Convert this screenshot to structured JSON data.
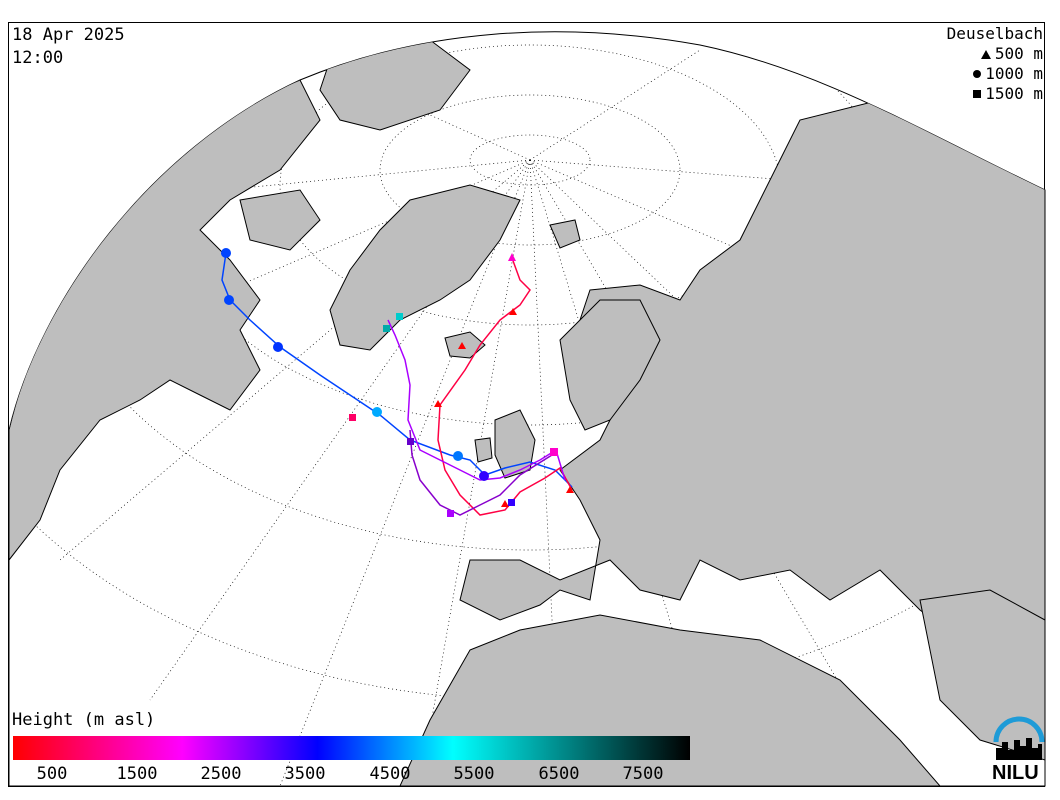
{
  "header": {
    "date": "18 Apr 2025",
    "time": "12:00"
  },
  "legend": {
    "station": "Deuselbach",
    "items": [
      {
        "symbol": "triangle",
        "label": "500 m",
        "color": "#ff0000"
      },
      {
        "symbol": "circle",
        "label": "1000 m",
        "color": "#0000ff"
      },
      {
        "symbol": "square",
        "label": "1500 m",
        "color": "#ff00ff"
      }
    ]
  },
  "colorbar": {
    "title": "Height (m asl)",
    "ticks": [
      "500",
      "1500",
      "2500",
      "3500",
      "4500",
      "5500",
      "6500",
      "7500"
    ],
    "colors": [
      "#ff0000",
      "#ff00ff",
      "#0000ff",
      "#00ffff",
      "#000000"
    ]
  },
  "logo": {
    "text": "NILU",
    "color": "#1e9bd7"
  },
  "map": {
    "land_color": "#bebebe",
    "ocean_color": "#ffffff",
    "graticule": "dotted"
  }
}
